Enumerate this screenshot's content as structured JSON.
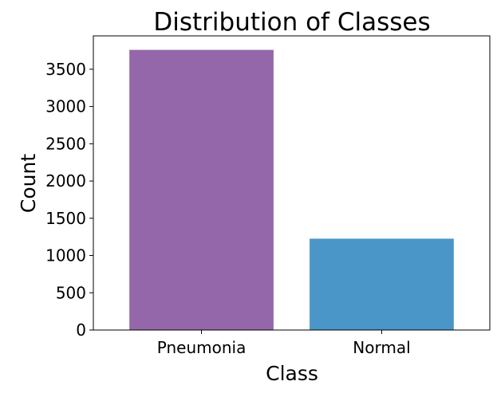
{
  "chart_data": {
    "type": "bar",
    "title": "Distribution of Classes",
    "xlabel": "Class",
    "ylabel": "Count",
    "categories": [
      "Pneumonia",
      "Normal"
    ],
    "values": [
      3760,
      1226
    ],
    "colors": [
      "#9467aa",
      "#4a96c8"
    ],
    "ylim": [
      0,
      3948
    ],
    "yticks": [
      0,
      500,
      1000,
      1500,
      2000,
      2500,
      3000,
      3500
    ],
    "grid": false,
    "legend": "none"
  }
}
